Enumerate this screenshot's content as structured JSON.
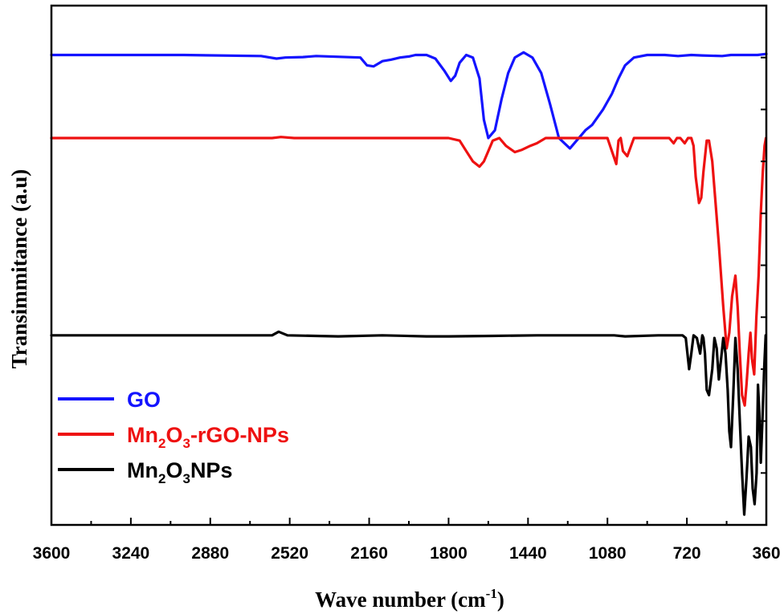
{
  "chart_data": {
    "type": "line",
    "xlabel": "Wave number (cm",
    "xlabel_sup": "-1",
    "xlabel_end": ")",
    "ylabel": "Transimmitance (a.u)",
    "xlim": [
      3600,
      360
    ],
    "x_reversed": true,
    "ylim": [
      0,
      1
    ],
    "y_tick_labels_shown": false,
    "x_ticks": [
      3600,
      3240,
      2880,
      2520,
      2160,
      1800,
      1440,
      1080,
      720,
      360
    ],
    "x_tick_labels": [
      "3600",
      "3240",
      "2880",
      "2520",
      "2160",
      "1800",
      "1440",
      "1080",
      "720",
      "360"
    ],
    "legend_position": "bottom-left",
    "legend": [
      {
        "series": "GO",
        "text": "GO",
        "color": "#1414ff"
      },
      {
        "series": "Mn2O3-rGO-NPs",
        "text_parts": [
          "Mn",
          "2",
          "O",
          "3",
          "-rGO-NPs"
        ],
        "color": "#ee1111"
      },
      {
        "series": "Mn2O3NPs",
        "text_parts": [
          "Mn",
          "2",
          "O",
          "3",
          "NPs"
        ],
        "color": "#000000"
      }
    ],
    "series": [
      {
        "name": "GO",
        "color": "#1414ff",
        "x": [
          3600,
          3000,
          2650,
          2580,
          2540,
          2460,
          2400,
          2200,
          2170,
          2140,
          2100,
          2060,
          2020,
          1980,
          1950,
          1900,
          1860,
          1820,
          1790,
          1770,
          1750,
          1720,
          1690,
          1660,
          1640,
          1620,
          1590,
          1560,
          1530,
          1500,
          1460,
          1420,
          1380,
          1340,
          1300,
          1250,
          1220,
          1200,
          1180,
          1150,
          1100,
          1060,
          1030,
          1000,
          960,
          900,
          820,
          760,
          700,
          650,
          560,
          520,
          400,
          360
        ],
        "y": [
          0.905,
          0.905,
          0.903,
          0.898,
          0.9,
          0.901,
          0.903,
          0.9,
          0.885,
          0.883,
          0.893,
          0.896,
          0.9,
          0.902,
          0.905,
          0.905,
          0.898,
          0.875,
          0.855,
          0.865,
          0.89,
          0.905,
          0.9,
          0.86,
          0.78,
          0.745,
          0.76,
          0.82,
          0.87,
          0.9,
          0.91,
          0.9,
          0.87,
          0.81,
          0.745,
          0.725,
          0.74,
          0.75,
          0.76,
          0.77,
          0.8,
          0.83,
          0.86,
          0.885,
          0.9,
          0.905,
          0.905,
          0.903,
          0.905,
          0.904,
          0.903,
          0.905,
          0.905,
          0.907
        ]
      },
      {
        "name": "Mn2O3-rGO-NPs",
        "color": "#ee1111",
        "x": [
          3600,
          3000,
          2600,
          2560,
          2500,
          2300,
          2100,
          1900,
          1800,
          1750,
          1720,
          1690,
          1660,
          1640,
          1620,
          1600,
          1570,
          1540,
          1500,
          1470,
          1430,
          1400,
          1360,
          1320,
          1200,
          1100,
          1080,
          1060,
          1040,
          1030,
          1020,
          1010,
          990,
          960,
          900,
          800,
          780,
          765,
          750,
          730,
          715,
          700,
          690,
          680,
          665,
          655,
          645,
          630,
          620,
          605,
          590,
          575,
          555,
          540,
          528,
          515,
          500,
          490,
          480,
          470,
          458,
          450,
          440,
          432,
          425,
          415,
          405,
          395,
          385,
          376,
          368,
          362
        ],
        "y": [
          0.745,
          0.745,
          0.745,
          0.747,
          0.745,
          0.745,
          0.745,
          0.745,
          0.745,
          0.74,
          0.72,
          0.7,
          0.69,
          0.7,
          0.72,
          0.74,
          0.745,
          0.73,
          0.718,
          0.722,
          0.73,
          0.735,
          0.745,
          0.745,
          0.745,
          0.745,
          0.745,
          0.72,
          0.695,
          0.74,
          0.745,
          0.72,
          0.71,
          0.745,
          0.745,
          0.745,
          0.735,
          0.745,
          0.745,
          0.735,
          0.745,
          0.745,
          0.73,
          0.67,
          0.62,
          0.63,
          0.68,
          0.74,
          0.74,
          0.7,
          0.62,
          0.54,
          0.42,
          0.34,
          0.37,
          0.44,
          0.48,
          0.42,
          0.33,
          0.25,
          0.23,
          0.27,
          0.33,
          0.37,
          0.32,
          0.29,
          0.4,
          0.48,
          0.6,
          0.68,
          0.73,
          0.745
        ]
      },
      {
        "name": "Mn2O3NPs",
        "color": "#000000",
        "x": [
          3600,
          3000,
          2600,
          2570,
          2530,
          2300,
          2100,
          1900,
          1800,
          1600,
          1400,
          1200,
          1050,
          1000,
          850,
          770,
          740,
          725,
          710,
          700,
          690,
          675,
          660,
          650,
          645,
          638,
          630,
          620,
          605,
          595,
          585,
          575,
          565,
          555,
          545,
          535,
          528,
          520,
          510,
          500,
          490,
          480,
          470,
          460,
          450,
          440,
          430,
          422,
          413,
          404,
          398,
          392,
          385,
          378,
          370,
          363
        ],
        "y": [
          0.365,
          0.365,
          0.365,
          0.372,
          0.365,
          0.363,
          0.365,
          0.363,
          0.363,
          0.364,
          0.365,
          0.365,
          0.365,
          0.363,
          0.365,
          0.365,
          0.365,
          0.36,
          0.3,
          0.33,
          0.365,
          0.36,
          0.33,
          0.365,
          0.36,
          0.33,
          0.26,
          0.25,
          0.3,
          0.36,
          0.34,
          0.28,
          0.32,
          0.36,
          0.33,
          0.26,
          0.18,
          0.15,
          0.25,
          0.36,
          0.3,
          0.2,
          0.1,
          0.02,
          0.09,
          0.17,
          0.15,
          0.07,
          0.04,
          0.1,
          0.27,
          0.22,
          0.12,
          0.2,
          0.3,
          0.365
        ]
      }
    ]
  }
}
